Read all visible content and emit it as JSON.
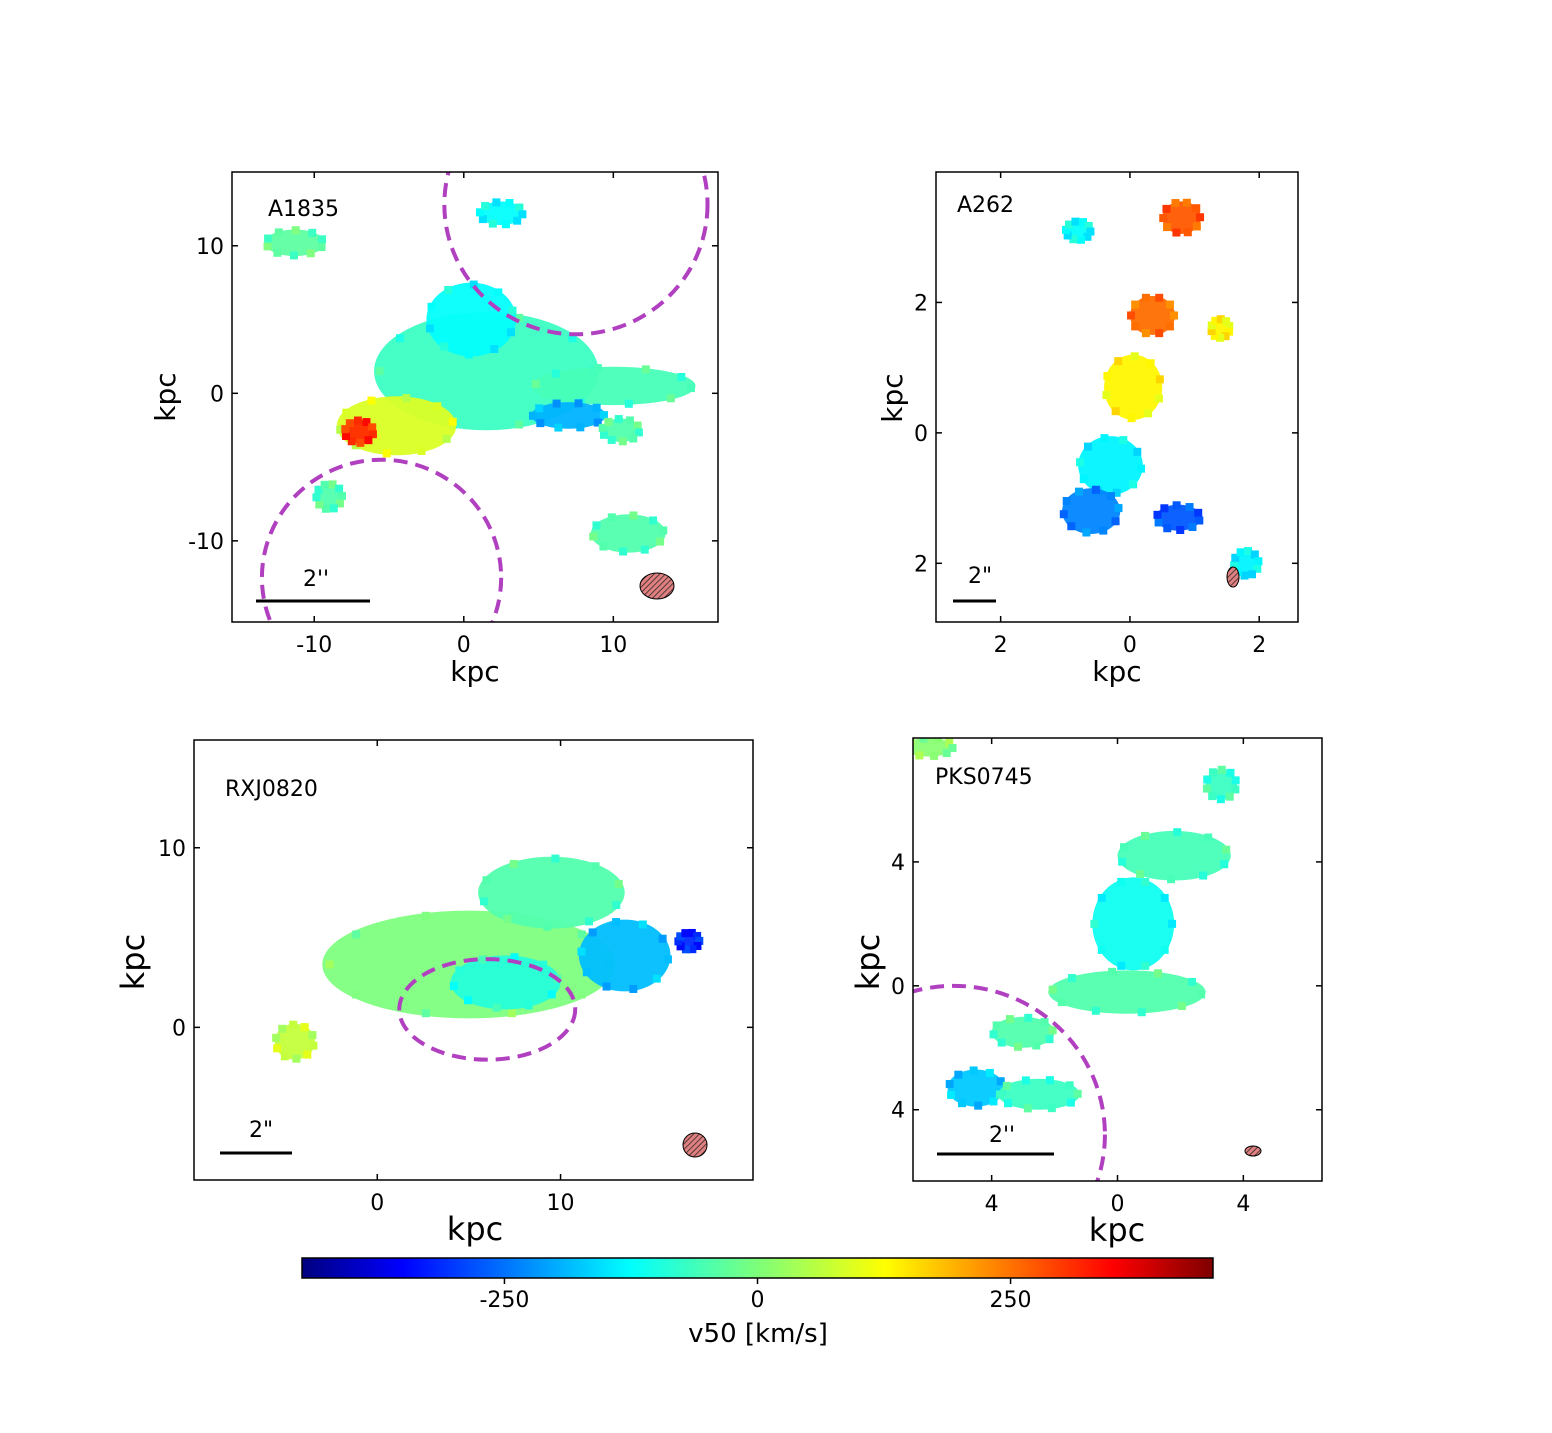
{
  "chart_data": [
    {
      "type": "heatmap",
      "panel_label": "A1835",
      "xlabel": "kpc",
      "ylabel": "kpc",
      "xticks": [
        "-10",
        "0",
        "10"
      ],
      "yticks": [
        "10",
        "0",
        "-10"
      ],
      "xlim": [
        -15.5,
        17
      ],
      "ylim": [
        -15.5,
        15
      ],
      "scalebar_label": "2''",
      "circles": [
        {
          "cx": 7.5,
          "cy": 12.8,
          "r": 8.8
        },
        {
          "cx": -5.5,
          "cy": -12.5,
          "r": 8.0
        }
      ],
      "blobs": [
        {
          "x": 1.5,
          "y": 1.5,
          "rx": 7.5,
          "ry": 4.0,
          "v": -60
        },
        {
          "x": 0.5,
          "y": 5.0,
          "rx": 3.0,
          "ry": 2.5,
          "v": -110
        },
        {
          "x": 10.0,
          "y": 0.5,
          "rx": 5.5,
          "ry": 1.3,
          "v": -50
        },
        {
          "x": -4.5,
          "y": -2.2,
          "rx": 4.0,
          "ry": 2.0,
          "v": 80
        },
        {
          "x": -7.0,
          "y": -2.6,
          "rx": 1.0,
          "ry": 0.8,
          "v": 300
        },
        {
          "x": 7.0,
          "y": -1.5,
          "rx": 2.5,
          "ry": 0.9,
          "v": -180
        },
        {
          "x": -11.3,
          "y": 10.2,
          "rx": 2.0,
          "ry": 0.9,
          "v": -30
        },
        {
          "x": 2.5,
          "y": 12.2,
          "rx": 1.5,
          "ry": 0.8,
          "v": -110
        },
        {
          "x": 11.0,
          "y": -9.5,
          "rx": 2.5,
          "ry": 1.3,
          "v": -40
        },
        {
          "x": 10.5,
          "y": -2.5,
          "rx": 1.3,
          "ry": 0.8,
          "v": -40
        },
        {
          "x": -9.0,
          "y": -7.0,
          "rx": 0.9,
          "ry": 0.9,
          "v": -40
        }
      ]
    },
    {
      "type": "heatmap",
      "panel_label": "A262",
      "xlabel": "kpc",
      "ylabel": "kpc",
      "xticks": [
        "2",
        "0",
        "2"
      ],
      "yticks": [
        "2",
        "0",
        "2"
      ],
      "xlim": [
        -3.0,
        2.6
      ],
      "ylim": [
        -2.9,
        4.0
      ],
      "scalebar_label": "2\"",
      "circles": [],
      "blobs": [
        {
          "x": 0.35,
          "y": 1.8,
          "rx": 0.35,
          "ry": 0.3,
          "v": 240
        },
        {
          "x": 0.05,
          "y": 0.7,
          "rx": 0.45,
          "ry": 0.5,
          "v": 120
        },
        {
          "x": -0.3,
          "y": -0.5,
          "rx": 0.5,
          "ry": 0.45,
          "v": -120
        },
        {
          "x": -0.6,
          "y": -1.2,
          "rx": 0.45,
          "ry": 0.35,
          "v": -220
        },
        {
          "x": 0.75,
          "y": -1.3,
          "rx": 0.35,
          "ry": 0.2,
          "v": -260
        },
        {
          "x": 0.8,
          "y": 3.3,
          "rx": 0.3,
          "ry": 0.25,
          "v": 260
        },
        {
          "x": 1.4,
          "y": 1.6,
          "rx": 0.15,
          "ry": 0.15,
          "v": 120
        },
        {
          "x": -0.8,
          "y": 3.1,
          "rx": 0.2,
          "ry": 0.15,
          "v": -110
        },
        {
          "x": 1.8,
          "y": -2.0,
          "rx": 0.2,
          "ry": 0.2,
          "v": -120
        }
      ]
    },
    {
      "type": "heatmap",
      "panel_label": "RXJ0820",
      "xlabel": "kpc",
      "ylabel": "kpc",
      "xticks": [
        "0",
        "10"
      ],
      "yticks": [
        "10",
        "0"
      ],
      "xlim": [
        -10,
        20.5
      ],
      "ylim": [
        -8.5,
        16
      ],
      "scalebar_label": "2\"",
      "circles": [
        {
          "cx": 6.0,
          "cy": 1.0,
          "rx": 4.8,
          "ry": 2.8
        }
      ],
      "blobs": [
        {
          "x": 5.0,
          "y": 3.5,
          "rx": 8.0,
          "ry": 3.0,
          "v": 0
        },
        {
          "x": 9.5,
          "y": 7.5,
          "rx": 4.0,
          "ry": 2.0,
          "v": -40
        },
        {
          "x": 13.5,
          "y": 4.0,
          "rx": 2.5,
          "ry": 2.0,
          "v": -170
        },
        {
          "x": 7.0,
          "y": 2.5,
          "rx": 3.0,
          "ry": 1.5,
          "v": -80
        },
        {
          "x": -4.5,
          "y": -0.8,
          "rx": 1.1,
          "ry": 1.0,
          "v": 60
        },
        {
          "x": 17.0,
          "y": 4.8,
          "rx": 0.6,
          "ry": 0.5,
          "v": -300
        }
      ]
    },
    {
      "type": "heatmap",
      "panel_label": "PKS0745",
      "xlabel": "kpc",
      "ylabel": "kpc",
      "xticks": [
        "4",
        "0",
        "4"
      ],
      "yticks": [
        "4",
        "0",
        "4"
      ],
      "xlim": [
        -6.5,
        6.5
      ],
      "ylim": [
        -6.3,
        8.0
      ],
      "scalebar_label": "2''",
      "circles": [
        {
          "cx": -5.2,
          "cy": -4.8,
          "r": 4.8
        }
      ],
      "blobs": [
        {
          "x": 0.5,
          "y": 2.0,
          "rx": 1.3,
          "ry": 1.5,
          "v": -100
        },
        {
          "x": 1.8,
          "y": 4.2,
          "rx": 1.8,
          "ry": 0.8,
          "v": -50
        },
        {
          "x": 0.3,
          "y": -0.2,
          "rx": 2.5,
          "ry": 0.7,
          "v": -40
        },
        {
          "x": -3.0,
          "y": -1.5,
          "rx": 1.0,
          "ry": 0.5,
          "v": -40
        },
        {
          "x": -4.5,
          "y": -3.3,
          "rx": 0.9,
          "ry": 0.6,
          "v": -160
        },
        {
          "x": -2.5,
          "y": -3.5,
          "rx": 1.3,
          "ry": 0.5,
          "v": -60
        },
        {
          "x": 3.3,
          "y": 6.5,
          "rx": 0.5,
          "ry": 0.5,
          "v": -60
        },
        {
          "x": -6.0,
          "y": 7.7,
          "rx": 0.8,
          "ry": 0.3,
          "v": 10
        }
      ]
    }
  ],
  "colorbar": {
    "label": "v50 [km/s]",
    "vmin": -450,
    "vmax": 450,
    "ticks": [
      -250,
      0,
      250
    ],
    "tick_labels": [
      "-250",
      "0",
      "250"
    ],
    "colormap": "jet"
  },
  "colors": {
    "circle": "#b040c0",
    "beam": "#cc4444"
  }
}
